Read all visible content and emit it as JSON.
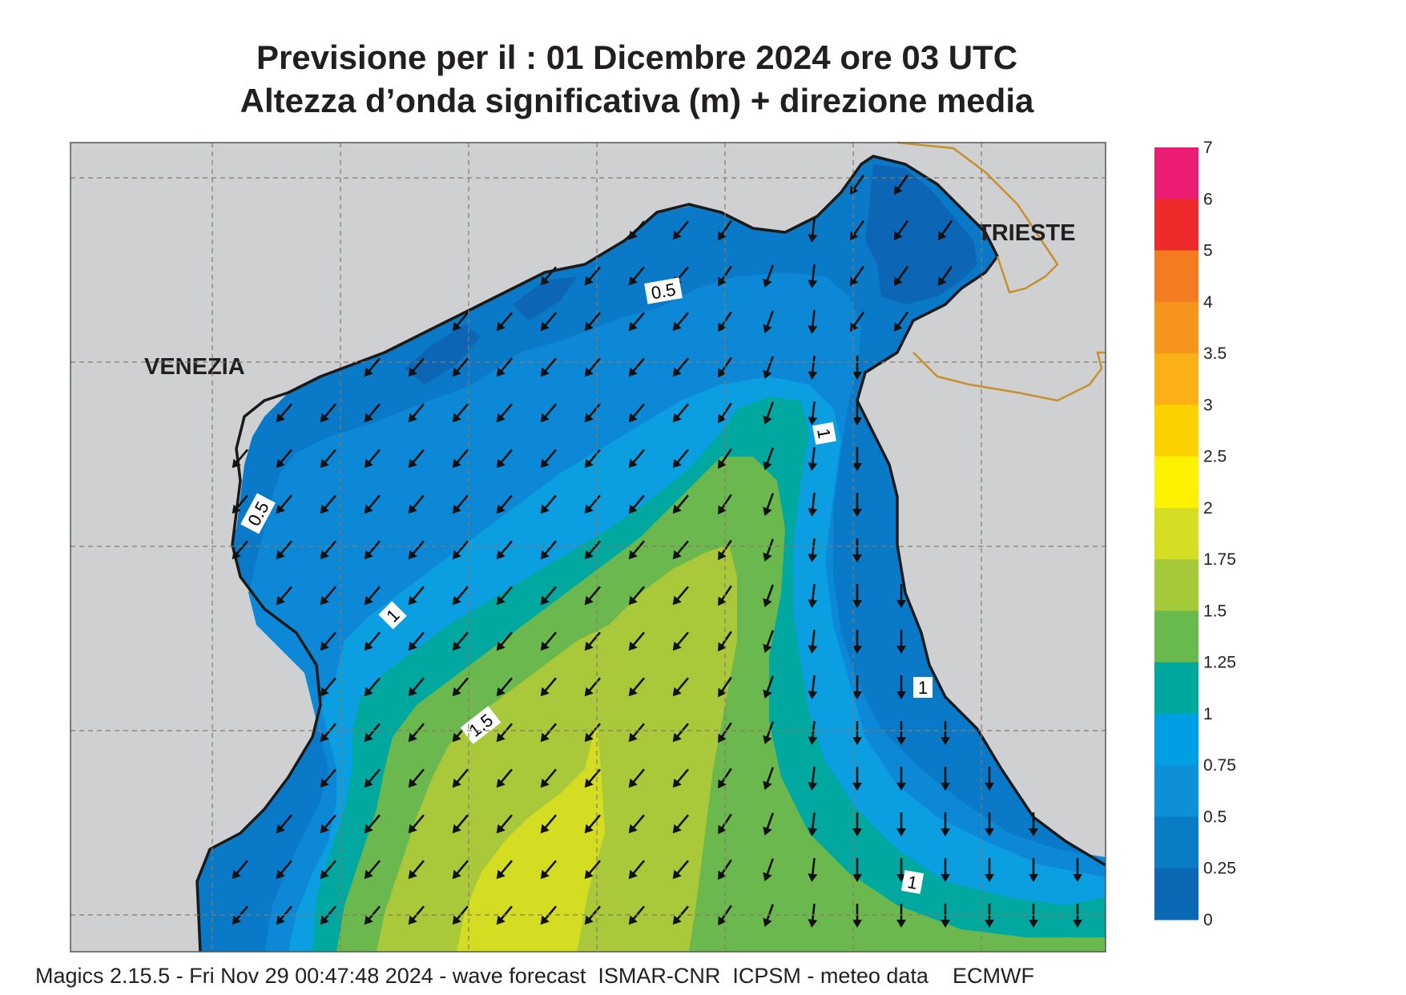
{
  "header": {
    "line1": "Previsione per il  :  01 Dicembre  2024   ore 03 UTC",
    "line2": "Altezza d’onda significativa (m) + direzione media"
  },
  "map": {
    "cities": [
      {
        "name": "VENEZIA"
      },
      {
        "name": "TRIESTE"
      }
    ],
    "contour_labels": [
      "0.5",
      "0.5",
      "1",
      "1",
      "1",
      "1.5",
      "1"
    ],
    "colors": {
      "land": "#cfd0d2",
      "sea_0_25": "#0c66b5",
      "sea_0_5": "#0a79c8",
      "sea_0_75": "#0c88d6",
      "sea_1": "#0b9ee0",
      "sea_1_25": "#00a8a0",
      "sea_1_5": "#6bb94e",
      "sea_1_75": "#a9c93a",
      "sea_2": "#d4dd22",
      "border": "#c8902a"
    },
    "arrow_direction": "south-west"
  },
  "colorbar": {
    "ticks": [
      "7",
      "6",
      "5",
      "4",
      "3.5",
      "3",
      "2.5",
      "2",
      "1.75",
      "1.5",
      "1.25",
      "1",
      "0.75",
      "0.5",
      "0.25",
      "0"
    ],
    "colors": [
      "#ec1c74",
      "#ee2a2a",
      "#f47c20",
      "#f7941d",
      "#fbb015",
      "#fcd100",
      "#fff200",
      "#d6de23",
      "#a6c93a",
      "#6ab94d",
      "#00a79d",
      "#009fe3",
      "#0d90d8",
      "#0a7cc6",
      "#0b68b5"
    ]
  },
  "footer": {
    "text": "Magics 2.15.5 - Fri Nov 29 00:47:48 2024 - wave forecast  ISMAR-CNR  ICPSM - meteo data    ECMWF"
  }
}
